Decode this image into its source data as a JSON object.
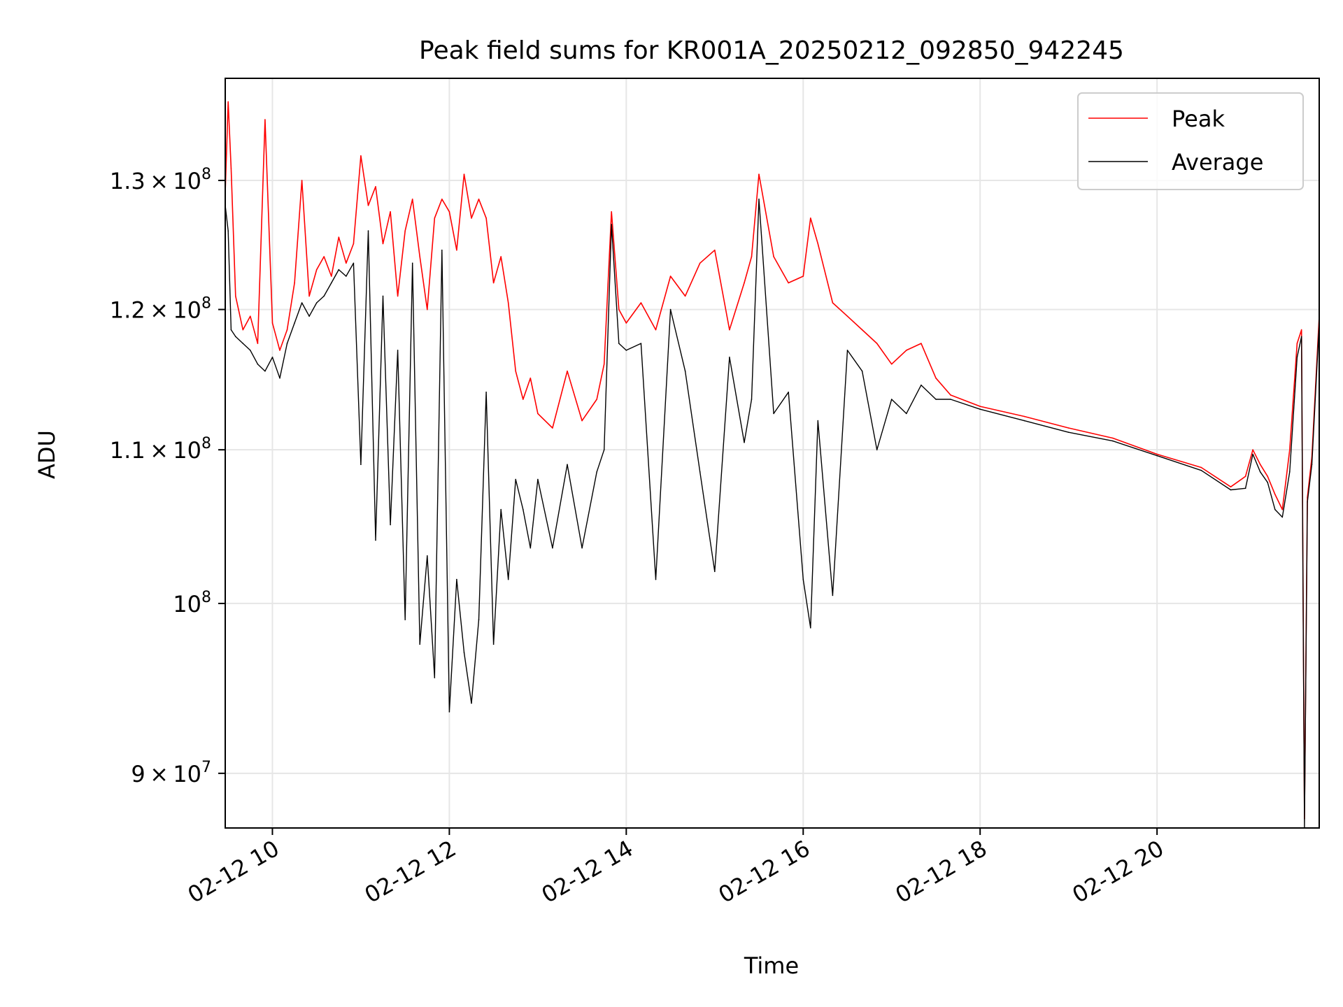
{
  "chart_data": {
    "type": "line",
    "title": "Peak field sums for KR001A_20250212_092850_942245",
    "xlabel": "Time",
    "ylabel": "ADU",
    "yscale": "log",
    "xlim": [
      "2025-02-12 09:28",
      "2025-02-12 21:50"
    ],
    "ylim": [
      87000000,
      138500000
    ],
    "grid": true,
    "legend": {
      "loc": "upper right"
    },
    "x_ticks": [
      {
        "value": "2025-02-12 10:00",
        "label": "02-12 10"
      },
      {
        "value": "2025-02-12 12:00",
        "label": "02-12 12"
      },
      {
        "value": "2025-02-12 14:00",
        "label": "02-12 14"
      },
      {
        "value": "2025-02-12 16:00",
        "label": "02-12 16"
      },
      {
        "value": "2025-02-12 18:00",
        "label": "02-12 18"
      },
      {
        "value": "2025-02-12 20:00",
        "label": "02-12 20"
      }
    ],
    "y_ticks": [
      {
        "value": 90000000,
        "mantissa": "9",
        "exponent": "7"
      },
      {
        "value": 100000000,
        "mantissa": "",
        "exponent": "8"
      },
      {
        "value": 110000000,
        "mantissa": "1.1",
        "exponent": "8"
      },
      {
        "value": 120000000,
        "mantissa": "1.2",
        "exponent": "8"
      },
      {
        "value": 130000000,
        "mantissa": "1.3",
        "exponent": "8"
      }
    ],
    "x": [
      "2025-02-12 09:28",
      "2025-02-12 09:30",
      "2025-02-12 09:32",
      "2025-02-12 09:35",
      "2025-02-12 09:40",
      "2025-02-12 09:45",
      "2025-02-12 09:50",
      "2025-02-12 09:55",
      "2025-02-12 10:00",
      "2025-02-12 10:05",
      "2025-02-12 10:10",
      "2025-02-12 10:15",
      "2025-02-12 10:20",
      "2025-02-12 10:25",
      "2025-02-12 10:30",
      "2025-02-12 10:35",
      "2025-02-12 10:40",
      "2025-02-12 10:45",
      "2025-02-12 10:50",
      "2025-02-12 10:55",
      "2025-02-12 11:00",
      "2025-02-12 11:05",
      "2025-02-12 11:10",
      "2025-02-12 11:15",
      "2025-02-12 11:20",
      "2025-02-12 11:25",
      "2025-02-12 11:30",
      "2025-02-12 11:35",
      "2025-02-12 11:40",
      "2025-02-12 11:45",
      "2025-02-12 11:50",
      "2025-02-12 11:55",
      "2025-02-12 12:00",
      "2025-02-12 12:05",
      "2025-02-12 12:10",
      "2025-02-12 12:15",
      "2025-02-12 12:20",
      "2025-02-12 12:25",
      "2025-02-12 12:30",
      "2025-02-12 12:35",
      "2025-02-12 12:40",
      "2025-02-12 12:45",
      "2025-02-12 12:50",
      "2025-02-12 12:55",
      "2025-02-12 13:00",
      "2025-02-12 13:10",
      "2025-02-12 13:20",
      "2025-02-12 13:30",
      "2025-02-12 13:40",
      "2025-02-12 13:45",
      "2025-02-12 13:50",
      "2025-02-12 13:55",
      "2025-02-12 14:00",
      "2025-02-12 14:10",
      "2025-02-12 14:20",
      "2025-02-12 14:30",
      "2025-02-12 14:40",
      "2025-02-12 14:50",
      "2025-02-12 15:00",
      "2025-02-12 15:10",
      "2025-02-12 15:20",
      "2025-02-12 15:25",
      "2025-02-12 15:30",
      "2025-02-12 15:40",
      "2025-02-12 15:50",
      "2025-02-12 16:00",
      "2025-02-12 16:05",
      "2025-02-12 16:10",
      "2025-02-12 16:20",
      "2025-02-12 16:30",
      "2025-02-12 16:40",
      "2025-02-12 16:50",
      "2025-02-12 17:00",
      "2025-02-12 17:10",
      "2025-02-12 17:20",
      "2025-02-12 17:30",
      "2025-02-12 17:40",
      "2025-02-12 18:00",
      "2025-02-12 18:30",
      "2025-02-12 19:00",
      "2025-02-12 19:30",
      "2025-02-12 20:00",
      "2025-02-12 20:30",
      "2025-02-12 20:50",
      "2025-02-12 21:00",
      "2025-02-12 21:05",
      "2025-02-12 21:10",
      "2025-02-12 21:15",
      "2025-02-12 21:20",
      "2025-02-12 21:25",
      "2025-02-12 21:30",
      "2025-02-12 21:35",
      "2025-02-12 21:38",
      "2025-02-12 21:40",
      "2025-02-12 21:42",
      "2025-02-12 21:45",
      "2025-02-12 21:50"
    ],
    "series": [
      {
        "name": "Peak",
        "color": "#ff0000",
        "values": [
          129000000,
          136500000,
          131000000,
          121000000,
          118500000,
          119500000,
          117500000,
          135000000,
          119000000,
          117000000,
          118500000,
          122000000,
          130000000,
          121000000,
          123000000,
          124000000,
          122500000,
          125500000,
          123500000,
          125000000,
          132000000,
          128000000,
          129500000,
          125000000,
          127500000,
          121000000,
          126000000,
          128500000,
          124000000,
          120000000,
          127000000,
          128500000,
          127500000,
          124500000,
          130500000,
          127000000,
          128500000,
          127000000,
          122000000,
          124000000,
          120500000,
          115500000,
          113500000,
          115000000,
          112500000,
          111500000,
          115500000,
          112000000,
          113500000,
          116000000,
          127500000,
          120000000,
          119000000,
          120500000,
          118500000,
          122500000,
          121000000,
          123500000,
          124500000,
          118500000,
          122000000,
          124000000,
          130500000,
          124000000,
          122000000,
          122500000,
          127000000,
          125000000,
          120500000,
          119500000,
          118500000,
          117500000,
          116000000,
          117000000,
          117500000,
          115000000,
          113800000,
          113000000,
          112300000,
          111500000,
          110800000,
          109700000,
          108800000,
          107500000,
          108200000,
          110000000,
          109000000,
          108200000,
          107000000,
          106000000,
          110000000,
          117500000,
          118500000,
          87500000,
          106800000,
          109500000,
          119500000
        ]
      },
      {
        "name": "Average",
        "color": "#000000",
        "values": [
          128000000,
          126000000,
          118500000,
          118000000,
          117500000,
          117000000,
          116000000,
          115500000,
          116500000,
          115000000,
          117500000,
          119000000,
          120500000,
          119500000,
          120500000,
          121000000,
          122000000,
          123000000,
          122500000,
          123500000,
          109000000,
          126000000,
          104000000,
          121000000,
          105000000,
          117000000,
          99000000,
          123500000,
          97500000,
          103000000,
          95500000,
          124500000,
          93500000,
          101500000,
          97000000,
          94000000,
          99000000,
          114000000,
          97500000,
          106000000,
          101500000,
          108000000,
          106000000,
          103500000,
          108000000,
          103500000,
          109000000,
          103500000,
          108500000,
          110000000,
          126500000,
          117500000,
          117000000,
          117500000,
          101500000,
          120000000,
          115500000,
          108500000,
          102000000,
          116500000,
          110500000,
          113500000,
          128500000,
          112500000,
          114000000,
          101500000,
          98500000,
          112000000,
          100500000,
          117000000,
          115500000,
          110000000,
          113500000,
          112500000,
          114500000,
          113500000,
          113500000,
          112800000,
          112000000,
          111200000,
          110600000,
          109600000,
          108600000,
          107300000,
          107400000,
          109700000,
          108500000,
          107800000,
          106000000,
          105500000,
          108500000,
          116500000,
          118000000,
          87000000,
          106500000,
          109000000,
          119000000
        ]
      }
    ]
  }
}
